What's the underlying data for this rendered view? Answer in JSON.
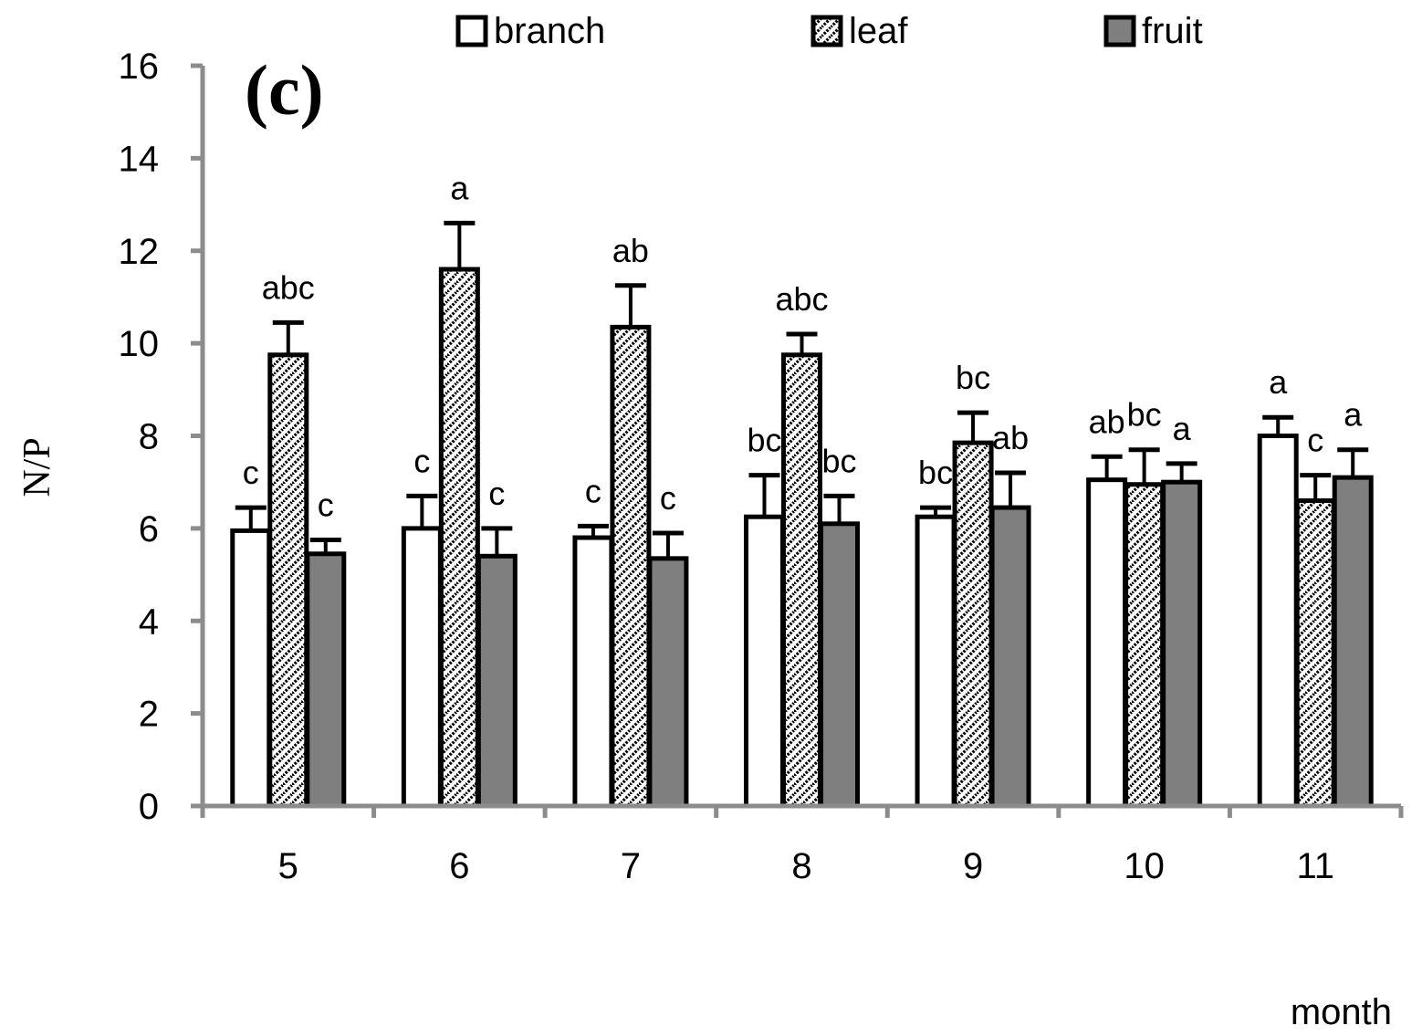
{
  "chart_data": {
    "type": "bar",
    "panel_label": "(c)",
    "title": "",
    "xlabel": "month",
    "ylabel": "N/P",
    "ylim": [
      0,
      16
    ],
    "yticks": [
      "0",
      "2",
      "4",
      "6",
      "8",
      "10",
      "12",
      "14",
      "16"
    ],
    "categories": [
      "5",
      "6",
      "7",
      "8",
      "9",
      "10",
      "11"
    ],
    "legend_position": "top",
    "series": [
      {
        "name": "branch",
        "pattern": "white",
        "values": [
          5.95,
          6.0,
          5.8,
          6.25,
          6.25,
          7.05,
          8.0
        ],
        "errors": [
          0.5,
          0.7,
          0.25,
          0.9,
          0.2,
          0.5,
          0.4
        ],
        "letters": [
          "c",
          "c",
          "c",
          "bc",
          "bc",
          "ab",
          "a"
        ]
      },
      {
        "name": "leaf",
        "pattern": "hatched",
        "values": [
          9.75,
          11.6,
          10.35,
          9.75,
          7.85,
          6.95,
          6.6
        ],
        "errors": [
          0.7,
          1.0,
          0.9,
          0.45,
          0.65,
          0.75,
          0.55
        ],
        "letters": [
          "abc",
          "a",
          "ab",
          "abc",
          "bc",
          "bc",
          "c"
        ]
      },
      {
        "name": "fruit",
        "pattern": "gray",
        "values": [
          5.45,
          5.4,
          5.35,
          6.1,
          6.45,
          7.0,
          7.1
        ],
        "errors": [
          0.3,
          0.6,
          0.55,
          0.6,
          0.75,
          0.4,
          0.6
        ],
        "letters": [
          "c",
          "c",
          "c",
          "bc",
          "ab",
          "a",
          "a"
        ]
      }
    ],
    "colors": {
      "branch": "#ffffff",
      "leaf_hatch": "#000000",
      "fruit": "#7f7f7f",
      "axis": "#8c8c8c"
    }
  }
}
